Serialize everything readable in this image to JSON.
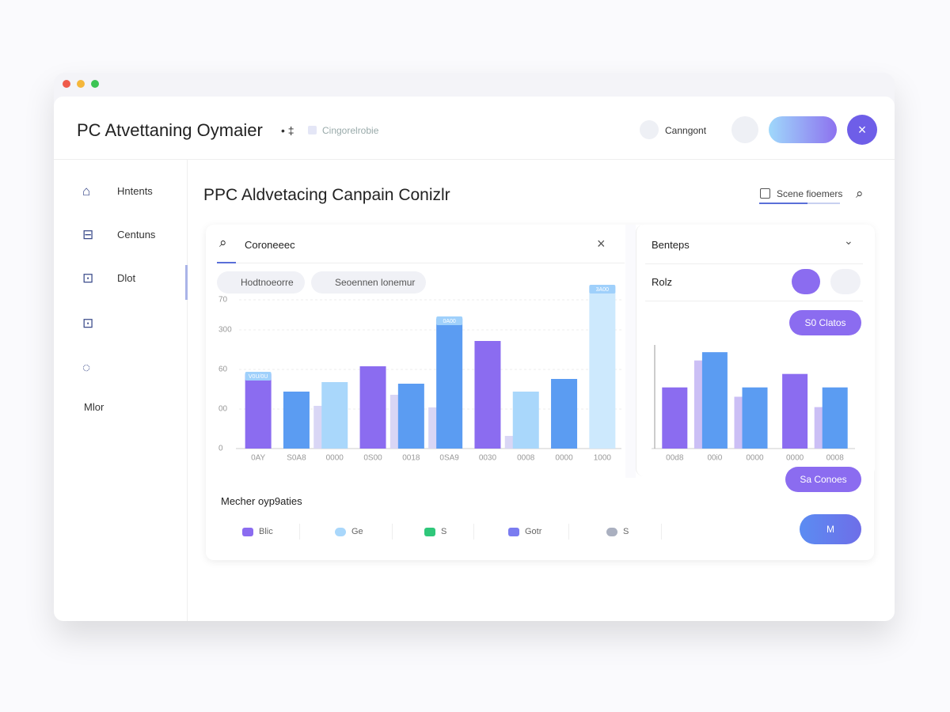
{
  "window": {
    "title": "PC Atvettaning Oymaier",
    "breadcrumb": "Cingorelrobie",
    "user": "Canngont"
  },
  "sidebar": [
    "Hntents",
    "Centuns",
    "Dlot",
    "Mlor"
  ],
  "main": {
    "title": "PPC Aldvetacing Canpain Conizlr",
    "tab": "Scene fioemers"
  },
  "left_panel": {
    "search": "Coroneeec",
    "chips": [
      "Hodtnoeorre",
      "Seoennen lonemur"
    ],
    "chart_data": {
      "type": "bar",
      "categories": [
        "0AY",
        "S0A8",
        "0000",
        "0S00",
        "0018",
        "0SA9",
        "0030",
        "0008",
        "0000",
        "1000"
      ],
      "series": [
        {
          "color": "#d9d6f5",
          "values": [
            null,
            null,
            27,
            null,
            34,
            26,
            null,
            8,
            null,
            null
          ]
        },
        {
          "colors": [
            "#8b6cf0",
            "#5b9cf2",
            "#a9d7fb",
            "#8b6cf0",
            "#5b9cf2",
            "#5b9cf2",
            "#8b6cf0",
            "#a9d7fb",
            "#5b9cf2",
            "#cde9fd"
          ],
          "values": [
            47,
            36,
            42,
            52,
            41,
            82,
            68,
            36,
            44,
            102
          ]
        }
      ],
      "annotations": [
        {
          "index": 0,
          "text": "V0U/0U"
        },
        {
          "index": 5,
          "text": "0A00"
        },
        {
          "index": 9,
          "text": "3A00"
        }
      ],
      "ylim": [
        0,
        105
      ],
      "yticks": [
        0,
        {
          "value": 25,
          "label": "00"
        },
        {
          "value": 50,
          "label": "60"
        },
        {
          "value": 75,
          "label": "300"
        },
        {
          "value": 94,
          "label": "70"
        }
      ],
      "grid": true
    }
  },
  "right_panel": {
    "dropdown": "Benteps",
    "row": "Rolz",
    "button": "S0 Clatos",
    "button2": "Sa Conoes",
    "chart_data": {
      "type": "bar",
      "categories": [
        "00d8",
        "00i0",
        "0000",
        "0000",
        "0008"
      ],
      "series": [
        {
          "color": "#cbbff5",
          "values": [
            null,
            85,
            50,
            null,
            40
          ]
        },
        {
          "colors": [
            "#8b6cf0",
            "#5b9cf2",
            "#5b9cf2",
            "#8b6cf0",
            "#5b9cf2"
          ],
          "values": [
            59,
            93,
            59,
            72,
            59
          ]
        }
      ],
      "ylim": [
        0,
        100
      ]
    }
  },
  "footer": {
    "title": "Mecher oyp9aties",
    "legend": [
      {
        "label": "Blic",
        "color": "#8b6cf0"
      },
      {
        "label": "Ge",
        "color": "#a9d7fb"
      },
      {
        "label": "S",
        "color": "#2fc77a"
      },
      {
        "label": "Gotr",
        "color": "#7a7cf0"
      },
      {
        "label": "S",
        "color": "#aab0c0"
      }
    ],
    "button": "M"
  }
}
